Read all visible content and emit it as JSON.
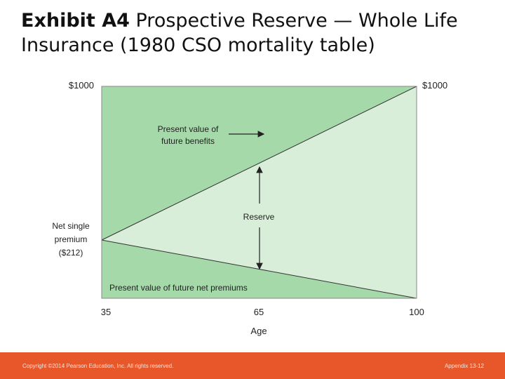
{
  "title": {
    "exhibit": "Exhibit A4",
    "text": " Prospective Reserve — Whole Life Insurance (1980 CSO mortality table)"
  },
  "diagram": {
    "y_top_left": "$1000",
    "y_top_right": "$1000",
    "net_single_premium_line1": "Net single",
    "net_single_premium_line2": "premium",
    "net_single_premium_value": "($212)",
    "pv_benefits_line1": "Present value of",
    "pv_benefits_line2": "future benefits",
    "reserve": "Reserve",
    "pv_premiums": "Present value of future net premiums",
    "x_ticks": [
      "35",
      "65",
      "100"
    ],
    "x_label": "Age",
    "colors": {
      "dark_green": "#a6d9a9",
      "light_green": "#d8eed9",
      "border": "#888888"
    }
  },
  "footer": {
    "copyright": "Copyright ©2014 Pearson Education, Inc. All rights reserved.",
    "page": "Appendix 13-12"
  }
}
